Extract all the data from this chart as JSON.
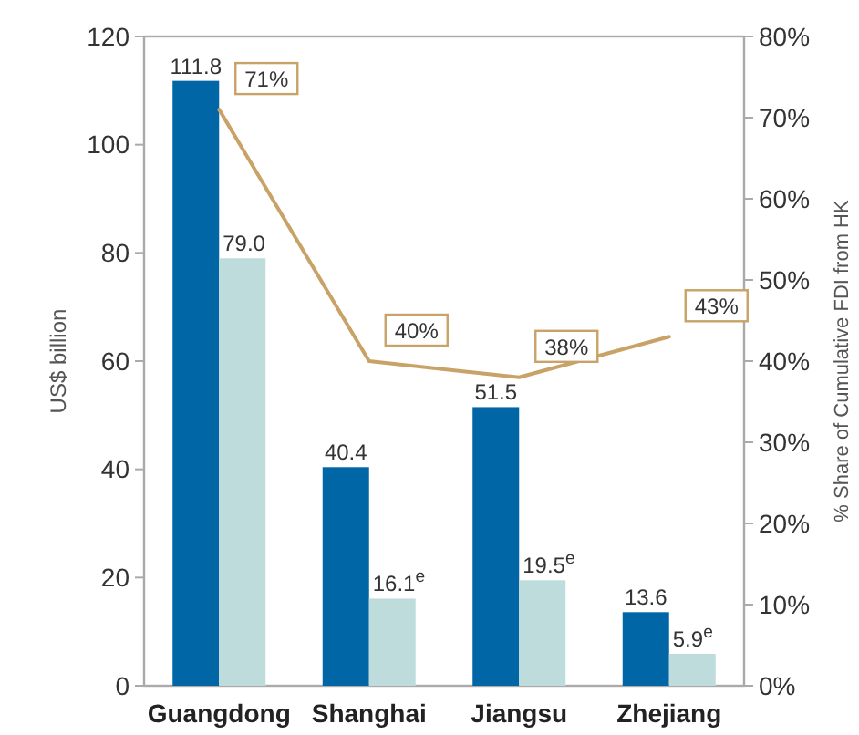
{
  "chart_data": {
    "type": "bar",
    "ylabel": "US$ billion",
    "y2label": "% Share of Cumulative FDI from HK",
    "categories": [
      "Guangdong",
      "Shanghai",
      "Jiangsu",
      "Zhejiang"
    ],
    "series": [
      {
        "color": "#0066a6",
        "values": [
          111.8,
          40.4,
          51.5,
          13.6
        ],
        "value_labels": [
          "111.8",
          "40.4",
          "51.5",
          "13.6"
        ]
      },
      {
        "color": "#bedcdc",
        "values": [
          79.0,
          16.1,
          19.5,
          5.9
        ],
        "value_labels": [
          "79.0",
          "16.1$^{e}$",
          "19.5$^{e}$",
          "5.9$^{e}$"
        ]
      },
      {
        "type": "line",
        "axis": "y2",
        "color": "#c8a266",
        "values": [
          71,
          40,
          38,
          43
        ],
        "value_labels": [
          "71%",
          "40%",
          "38%",
          "43%"
        ]
      }
    ],
    "ylim": [
      0,
      120
    ],
    "yticks": [
      0,
      20,
      40,
      60,
      80,
      100,
      120
    ],
    "y2lim": [
      0,
      80
    ],
    "y2ticks": [
      {
        "value": 0,
        "label": "0%"
      },
      {
        "value": 10,
        "label": "10%"
      },
      {
        "value": 20,
        "label": "20%"
      },
      {
        "value": 30,
        "label": "30%"
      },
      {
        "value": 40,
        "label": "40%"
      },
      {
        "value": 50,
        "label": "50%"
      },
      {
        "value": 60,
        "label": "60%"
      },
      {
        "value": 70,
        "label": "70%"
      },
      {
        "value": 80,
        "label": "80%"
      }
    ],
    "grid": false
  }
}
